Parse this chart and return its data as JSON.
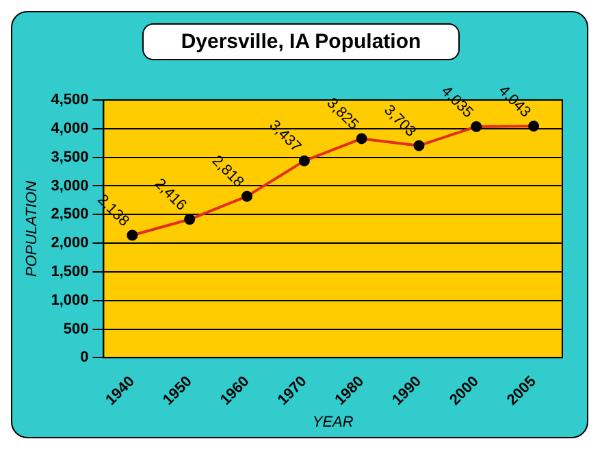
{
  "chart_data": {
    "type": "line",
    "title": "Dyersville, IA Population",
    "xlabel": "YEAR",
    "ylabel": "POPULATION",
    "categories": [
      "1940",
      "1950",
      "1960",
      "1970",
      "1980",
      "1990",
      "2000",
      "2005"
    ],
    "series": [
      {
        "color": "#e03020",
        "values": [
          2138,
          2416,
          2818,
          3437,
          3825,
          3703,
          4035,
          4043
        ],
        "value_labels": [
          "2,138",
          "2,416",
          "2,818",
          "3,437",
          "3,825",
          "3,703",
          "4,035",
          "4,043"
        ]
      }
    ],
    "ylim": [
      0,
      4500
    ],
    "yticks": [
      {
        "value": 0,
        "label": "0"
      },
      {
        "value": 500,
        "label": "500"
      },
      {
        "value": 1000,
        "label": "1,000"
      },
      {
        "value": 1500,
        "label": "1,500"
      },
      {
        "value": 2000,
        "label": "2,000"
      },
      {
        "value": 2500,
        "label": "2,500"
      },
      {
        "value": 3000,
        "label": "3,000"
      },
      {
        "value": 3500,
        "label": "3,500"
      },
      {
        "value": 4000,
        "label": "4,000"
      },
      {
        "value": 4500,
        "label": "4,500"
      }
    ],
    "grid": "y",
    "legend": false,
    "marker": "circle",
    "line_style": "solid"
  }
}
